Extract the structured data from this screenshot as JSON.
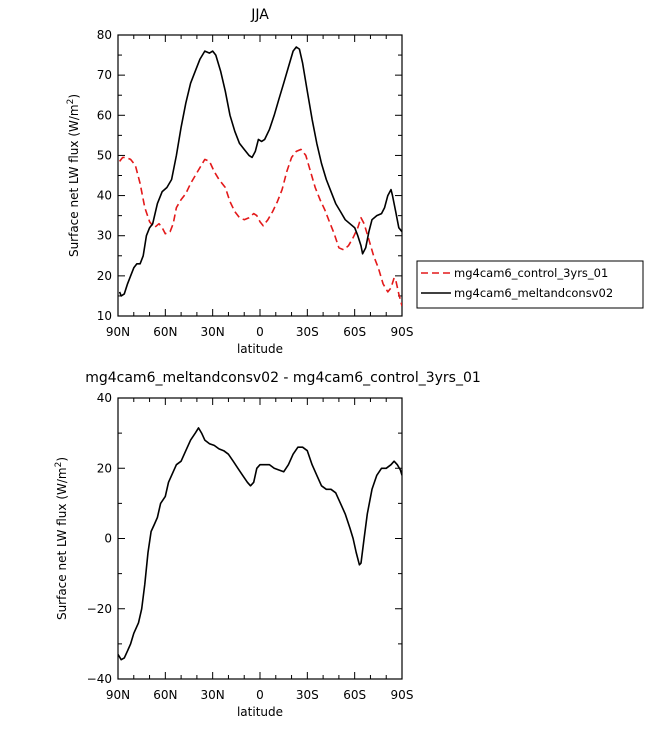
{
  "chart_data": [
    {
      "type": "line",
      "title": "JJA",
      "xlabel": "latitude",
      "ylabel": "Surface net LW flux (W/m²)",
      "ylabel_parts": {
        "main": "Surface net LW flux (W/m",
        "sup": "2",
        "close": ")"
      },
      "xlim": [
        90,
        -90
      ],
      "ylim": [
        10,
        80
      ],
      "xtick_values": [
        90,
        60,
        30,
        0,
        -30,
        -60,
        -90
      ],
      "xtick_labels": [
        "90N",
        "60N",
        "30N",
        "0",
        "30S",
        "60S",
        "90S"
      ],
      "ytick_values": [
        10,
        20,
        30,
        40,
        50,
        60,
        70,
        80
      ],
      "ytick_labels": [
        "10",
        "20",
        "30",
        "40",
        "50",
        "60",
        "70",
        "80"
      ],
      "legend_position": "right",
      "series": [
        {
          "name": "mg4cam6_control_3yrs_01",
          "color": "#e3191a",
          "dash": "dashed",
          "points": [
            [
              89,
              48.5
            ],
            [
              87,
              49.5
            ],
            [
              85,
              49.5
            ],
            [
              82,
              49
            ],
            [
              79,
              47.5
            ],
            [
              76,
              43
            ],
            [
              73,
              37
            ],
            [
              70,
              33.5
            ],
            [
              67,
              32
            ],
            [
              64,
              33
            ],
            [
              62,
              32
            ],
            [
              60,
              30.5
            ],
            [
              57,
              31
            ],
            [
              55,
              33
            ],
            [
              53,
              37
            ],
            [
              50,
              39
            ],
            [
              47,
              40.5
            ],
            [
              44,
              43
            ],
            [
              41,
              45
            ],
            [
              38,
              47
            ],
            [
              35,
              49
            ],
            [
              32,
              48.5
            ],
            [
              29,
              46
            ],
            [
              26,
              44
            ],
            [
              22,
              42
            ],
            [
              19,
              38.5
            ],
            [
              16,
              36
            ],
            [
              13,
              34.5
            ],
            [
              10,
              34
            ],
            [
              7,
              34.5
            ],
            [
              4,
              35.5
            ],
            [
              2,
              35
            ],
            [
              0,
              33.5
            ],
            [
              -2,
              32.5
            ],
            [
              -5,
              34
            ],
            [
              -8,
              36
            ],
            [
              -11,
              38.5
            ],
            [
              -14,
              41.5
            ],
            [
              -17,
              46
            ],
            [
              -20,
              49.5
            ],
            [
              -23,
              51
            ],
            [
              -26,
              51.5
            ],
            [
              -29,
              50
            ],
            [
              -32,
              46
            ],
            [
              -35,
              42
            ],
            [
              -38,
              39
            ],
            [
              -41,
              36.5
            ],
            [
              -44,
              33.5
            ],
            [
              -47,
              30.5
            ],
            [
              -50,
              27
            ],
            [
              -53,
              26.5
            ],
            [
              -56,
              27.5
            ],
            [
              -59,
              29.5
            ],
            [
              -62,
              32
            ],
            [
              -64,
              34.5
            ],
            [
              -66,
              33
            ],
            [
              -69,
              29
            ],
            [
              -72,
              25
            ],
            [
              -75,
              22
            ],
            [
              -78,
              18
            ],
            [
              -81,
              16
            ],
            [
              -83,
              17
            ],
            [
              -85,
              19.5
            ],
            [
              -86,
              19
            ],
            [
              -88,
              15.5
            ],
            [
              -90,
              12.5
            ]
          ]
        },
        {
          "name": "mg4cam6_meltandconsv02",
          "color": "#000000",
          "dash": "solid",
          "points": [
            [
              89,
              16
            ],
            [
              88,
              15
            ],
            [
              86,
              15.5
            ],
            [
              84,
              18
            ],
            [
              82,
              20
            ],
            [
              80,
              22
            ],
            [
              78,
              23
            ],
            [
              76,
              23
            ],
            [
              74,
              25
            ],
            [
              72,
              30
            ],
            [
              70,
              32
            ],
            [
              68,
              33
            ],
            [
              65,
              38
            ],
            [
              62,
              41
            ],
            [
              59,
              42
            ],
            [
              56,
              44
            ],
            [
              53,
              50
            ],
            [
              50,
              57
            ],
            [
              47,
              63
            ],
            [
              44,
              68
            ],
            [
              41,
              71
            ],
            [
              38,
              74
            ],
            [
              35,
              76
            ],
            [
              32,
              75.5
            ],
            [
              30,
              76
            ],
            [
              28,
              75
            ],
            [
              25,
              71
            ],
            [
              22,
              66
            ],
            [
              19,
              60
            ],
            [
              16,
              56
            ],
            [
              13,
              53
            ],
            [
              10,
              51.5
            ],
            [
              7,
              50
            ],
            [
              5,
              49.5
            ],
            [
              3,
              51
            ],
            [
              1,
              54
            ],
            [
              -1,
              53.5
            ],
            [
              -3,
              54
            ],
            [
              -6,
              56.5
            ],
            [
              -9,
              60
            ],
            [
              -12,
              64
            ],
            [
              -15,
              68
            ],
            [
              -18,
              72
            ],
            [
              -21,
              76
            ],
            [
              -23,
              77
            ],
            [
              -25,
              76.5
            ],
            [
              -27,
              73
            ],
            [
              -30,
              66
            ],
            [
              -33,
              59
            ],
            [
              -36,
              53
            ],
            [
              -39,
              48
            ],
            [
              -42,
              44
            ],
            [
              -45,
              41
            ],
            [
              -48,
              38
            ],
            [
              -51,
              36
            ],
            [
              -54,
              34
            ],
            [
              -57,
              33
            ],
            [
              -60,
              32
            ],
            [
              -62,
              30
            ],
            [
              -64,
              27.5
            ],
            [
              -65,
              25.5
            ],
            [
              -67,
              27
            ],
            [
              -69,
              31
            ],
            [
              -71,
              34
            ],
            [
              -74,
              35
            ],
            [
              -77,
              35.5
            ],
            [
              -79,
              37
            ],
            [
              -81,
              40
            ],
            [
              -83,
              41.5
            ],
            [
              -84,
              40
            ],
            [
              -86,
              36
            ],
            [
              -88,
              32
            ],
            [
              -90,
              31
            ]
          ]
        }
      ]
    },
    {
      "type": "line",
      "title": "mg4cam6_meltandconsv02 - mg4cam6_control_3yrs_01",
      "xlabel": "latitude",
      "ylabel": "Surface net LW flux (W/m²)",
      "ylabel_parts": {
        "main": "Surface net LW flux (W/m",
        "sup": "2",
        "close": ")"
      },
      "xlim": [
        90,
        -90
      ],
      "ylim": [
        -40,
        40
      ],
      "xtick_values": [
        90,
        60,
        30,
        0,
        -30,
        -60,
        -90
      ],
      "xtick_labels": [
        "90N",
        "60N",
        "30N",
        "0",
        "30S",
        "60S",
        "90S"
      ],
      "ytick_values": [
        -40,
        -20,
        0,
        20,
        40
      ],
      "ytick_labels": [
        "−40",
        "−20",
        "0",
        "20",
        "40"
      ],
      "series": [
        {
          "color": "#000000",
          "dash": "solid",
          "points": [
            [
              90,
              -33
            ],
            [
              88,
              -34.5
            ],
            [
              86,
              -34
            ],
            [
              84,
              -32
            ],
            [
              82,
              -30
            ],
            [
              80,
              -27
            ],
            [
              77,
              -24
            ],
            [
              75,
              -20
            ],
            [
              73,
              -13
            ],
            [
              71,
              -4
            ],
            [
              69,
              2
            ],
            [
              67,
              4
            ],
            [
              65,
              6
            ],
            [
              63,
              10
            ],
            [
              60,
              12
            ],
            [
              58,
              16
            ],
            [
              55,
              19
            ],
            [
              53,
              21
            ],
            [
              50,
              22
            ],
            [
              47,
              25
            ],
            [
              44,
              28
            ],
            [
              41,
              30
            ],
            [
              39,
              31.5
            ],
            [
              37,
              30
            ],
            [
              35,
              28
            ],
            [
              32,
              27
            ],
            [
              29,
              26.5
            ],
            [
              26,
              25.5
            ],
            [
              23,
              25
            ],
            [
              20,
              24
            ],
            [
              17,
              22
            ],
            [
              14,
              20
            ],
            [
              11,
              18
            ],
            [
              8,
              16
            ],
            [
              6,
              15
            ],
            [
              4,
              16
            ],
            [
              2,
              20
            ],
            [
              0,
              21
            ],
            [
              -3,
              21
            ],
            [
              -6,
              21
            ],
            [
              -9,
              20
            ],
            [
              -12,
              19.5
            ],
            [
              -15,
              19
            ],
            [
              -18,
              21
            ],
            [
              -21,
              24
            ],
            [
              -24,
              26
            ],
            [
              -27,
              26
            ],
            [
              -30,
              25
            ],
            [
              -33,
              21
            ],
            [
              -36,
              18
            ],
            [
              -39,
              15
            ],
            [
              -42,
              14
            ],
            [
              -45,
              14
            ],
            [
              -48,
              13
            ],
            [
              -51,
              10
            ],
            [
              -54,
              7
            ],
            [
              -57,
              3
            ],
            [
              -59,
              0
            ],
            [
              -61,
              -4
            ],
            [
              -63,
              -7.5
            ],
            [
              -64,
              -7
            ],
            [
              -66,
              0
            ],
            [
              -68,
              7
            ],
            [
              -71,
              14
            ],
            [
              -74,
              18
            ],
            [
              -77,
              20
            ],
            [
              -80,
              20
            ],
            [
              -83,
              21
            ],
            [
              -85,
              22
            ],
            [
              -87,
              21
            ],
            [
              -89,
              19.5
            ],
            [
              -90,
              18
            ]
          ]
        }
      ]
    }
  ]
}
